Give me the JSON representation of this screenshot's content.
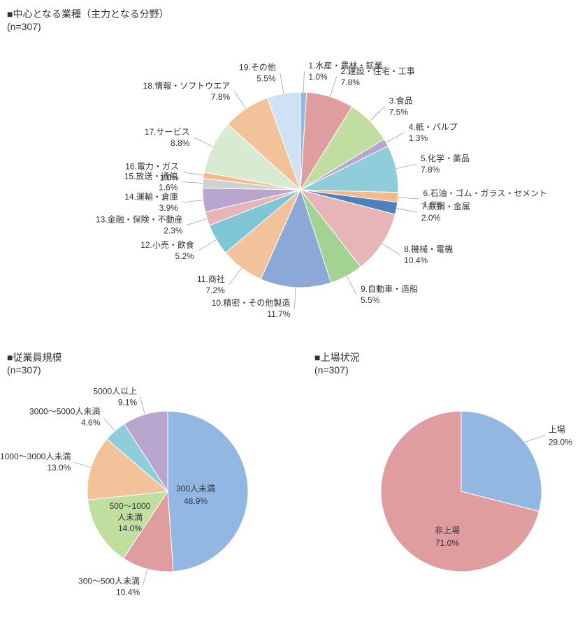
{
  "industry": {
    "title": "■中心となる業種（主力となる分野）",
    "subtitle": "(n=307)",
    "type": "pie",
    "slices": [
      {
        "label": "1.水産・農林・鉱業",
        "value": 1.0,
        "pct": "1.0%",
        "color": "#92b7e3"
      },
      {
        "label": "2.建設・住宅・工事",
        "value": 7.8,
        "pct": "7.8%",
        "color": "#df9da0"
      },
      {
        "label": "3.食品",
        "value": 7.5,
        "pct": "7.5%",
        "color": "#c0dea0"
      },
      {
        "label": "4.紙・パルプ",
        "value": 1.3,
        "pct": "1.3%",
        "color": "#b8a6cf"
      },
      {
        "label": "5.化学・薬品",
        "value": 7.8,
        "pct": "7.8%",
        "color": "#8fcddb"
      },
      {
        "label": "6.石油・ゴム・ガラス・セメント",
        "value": 1.6,
        "pct": "1.6%",
        "color": "#f6b98a"
      },
      {
        "label": "7.鉄鋼・金属",
        "value": 2.0,
        "pct": "2.0%",
        "color": "#4f81bd"
      },
      {
        "label": "8.機械・電機",
        "value": 10.4,
        "pct": "10.4%",
        "color": "#e7b5b7"
      },
      {
        "label": "9.自動車・造船",
        "value": 5.5,
        "pct": "5.5%",
        "color": "#a3d393"
      },
      {
        "label": "10.精密・その他製造",
        "value": 11.7,
        "pct": "11.7%",
        "color": "#8ba8d6"
      },
      {
        "label": "11.商社",
        "value": 7.2,
        "pct": "7.2%",
        "color": "#f2c39a"
      },
      {
        "label": "12.小売・飲食",
        "value": 5.2,
        "pct": "5.2%",
        "color": "#7ec6d6"
      },
      {
        "label": "13.金融・保険・不動産",
        "value": 2.3,
        "pct": "2.3%",
        "color": "#e7b5b7"
      },
      {
        "label": "14.運輸・倉庫",
        "value": 3.9,
        "pct": "3.9%",
        "color": "#b8a6cf"
      },
      {
        "label": "15.放送・通信",
        "value": 1.6,
        "pct": "1.6%",
        "color": "#d0d0d0"
      },
      {
        "label": "16.電力・ガス",
        "value": 1.0,
        "pct": "1.0%",
        "color": "#f6b98a"
      },
      {
        "label": "17.サービス",
        "value": 8.8,
        "pct": "8.8%",
        "color": "#d9ead3"
      },
      {
        "label": "18.情報・ソフトウエア",
        "value": 7.8,
        "pct": "7.8%",
        "color": "#f2c39a"
      },
      {
        "label": "19.その他",
        "value": 5.5,
        "pct": "5.5%",
        "color": "#cfe2f3"
      }
    ]
  },
  "employees": {
    "title": "■従業員規模",
    "subtitle": "(n=307)",
    "type": "pie",
    "slices": [
      {
        "label": "300人未満",
        "value": 48.9,
        "pct": "48.9%",
        "color": "#92b7e3"
      },
      {
        "label": "300～500人未満",
        "value": 10.4,
        "pct": "10.4%",
        "color": "#df9da0"
      },
      {
        "label": "500～1000人未満",
        "value": 14.0,
        "pct": "14.0%",
        "color": "#c0dea0"
      },
      {
        "label": "1000～3000人未満",
        "value": 13.0,
        "pct": "13.0%",
        "color": "#f2c39a"
      },
      {
        "label": "3000～5000人未満",
        "value": 4.6,
        "pct": "4.6%",
        "color": "#8fcddb"
      },
      {
        "label": "5000人以上",
        "value": 9.1,
        "pct": "9.1%",
        "color": "#b8a6cf"
      }
    ]
  },
  "listing": {
    "title": "■上場状況",
    "subtitle": "(n=307)",
    "type": "pie",
    "slices": [
      {
        "label": "上場",
        "value": 29.0,
        "pct": "29.0%",
        "color": "#92b7e3"
      },
      {
        "label": "非上場",
        "value": 71.0,
        "pct": "71.0%",
        "color": "#df9da0"
      }
    ]
  }
}
